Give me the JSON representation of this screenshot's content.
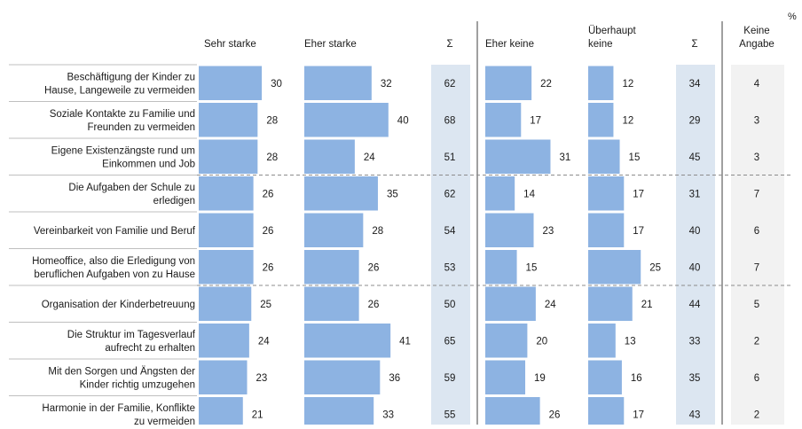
{
  "unit_label": "%",
  "columns": [
    {
      "key": "sehr_starke",
      "header_lines": [
        "Sehr starke"
      ]
    },
    {
      "key": "eher_starke",
      "header_lines": [
        "Eher starke"
      ]
    },
    {
      "key": "sum_stark",
      "header_lines": [
        "Σ"
      ]
    },
    {
      "key": "eher_keine",
      "header_lines": [
        "Eher keine"
      ]
    },
    {
      "key": "ueberhaupt_keine",
      "header_lines": [
        "Überhaupt",
        "keine"
      ]
    },
    {
      "key": "sum_keine",
      "header_lines": [
        "Σ"
      ]
    },
    {
      "key": "keine_angabe",
      "header_lines": [
        "Keine",
        "Angabe"
      ]
    }
  ],
  "colors": {
    "bar": "#8db3e2",
    "sum_band": "#dce6f1",
    "angabe_band": "#f2f2f2",
    "row_line": "#bfbfbf",
    "group_line": "#8c8c8c",
    "divider": "#404040"
  },
  "chart_data": {
    "type": "bar",
    "categories": [
      [
        "Beschäftigung der Kinder zu",
        "Hause, Langeweile zu vermeiden"
      ],
      [
        "Soziale Kontakte zu Familie und",
        "Freunden zu vermeiden"
      ],
      [
        "Eigene Existenzängste rund um",
        "Einkommen und Job"
      ],
      [
        "Die Aufgaben der Schule zu",
        "erledigen"
      ],
      [
        "Vereinbarkeit von Familie und Beruf"
      ],
      [
        "Homeoffice, also die Erledigung von",
        "beruflichen Aufgaben von zu Hause"
      ],
      [
        "Organisation der Kinderbetreuung"
      ],
      [
        "Die Struktur im Tagesverlauf",
        "aufrecht zu erhalten"
      ],
      [
        "Mit den Sorgen und Ängsten der",
        "Kinder richtig umzugehen"
      ],
      [
        "Harmonie in der Familie, Konflikte",
        "zu vermeiden"
      ]
    ],
    "series": [
      {
        "name": "Sehr starke",
        "values": [
          30,
          28,
          28,
          26,
          26,
          26,
          25,
          24,
          23,
          21
        ]
      },
      {
        "name": "Eher starke",
        "values": [
          32,
          40,
          24,
          35,
          28,
          26,
          26,
          41,
          36,
          33
        ]
      },
      {
        "name": "Σ",
        "values": [
          62,
          68,
          51,
          62,
          54,
          53,
          50,
          65,
          59,
          55
        ]
      },
      {
        "name": "Eher keine",
        "values": [
          22,
          17,
          31,
          14,
          23,
          15,
          24,
          20,
          19,
          26
        ]
      },
      {
        "name": "Überhaupt keine",
        "values": [
          12,
          12,
          15,
          17,
          17,
          25,
          21,
          13,
          16,
          17
        ]
      },
      {
        "name": "Σ",
        "values": [
          34,
          29,
          45,
          31,
          40,
          40,
          44,
          33,
          35,
          43
        ]
      },
      {
        "name": "Keine Angabe",
        "values": [
          4,
          3,
          3,
          7,
          6,
          7,
          5,
          2,
          6,
          2
        ]
      }
    ],
    "group_dividers_after_rows": [
      3,
      6
    ]
  }
}
